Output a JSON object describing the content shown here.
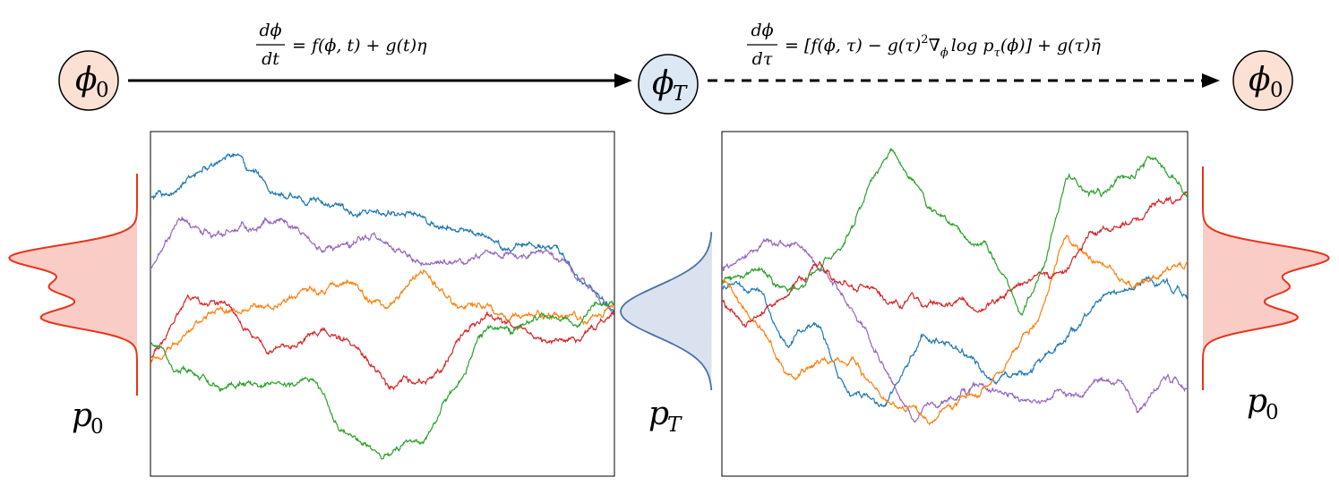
{
  "nodes": {
    "start": {
      "symbol": "ϕ",
      "sub": "0"
    },
    "middle": {
      "symbol": "ϕ",
      "sub": "T"
    },
    "end": {
      "symbol": "ϕ",
      "sub": "0"
    }
  },
  "forward_equation": {
    "numerator": "dϕ",
    "denominator": "dt",
    "rhs": "= f(ϕ, t) + g(t)η"
  },
  "reverse_equation": {
    "numerator": "dϕ",
    "denominator": "dτ",
    "rhs_a": "= [f(ϕ, τ)  − g(τ)",
    "rhs_b": "2",
    "rhs_c": "∇",
    "rhs_d": "ϕ",
    "rhs_e": "log p",
    "rhs_f": "τ",
    "rhs_g": "(ϕ)] + g(τ)η̄"
  },
  "distribution_labels": {
    "left": {
      "symbol": "p",
      "sub": "0"
    },
    "middle": {
      "symbol": "p",
      "sub": "T"
    },
    "right": {
      "symbol": "p",
      "sub": "0"
    }
  },
  "colors": {
    "node_data_fill": "#fbe0d4",
    "node_noise_fill": "#dde8f5",
    "data_dist_stroke": "#e8341c",
    "data_dist_fill": "#f9cdc5",
    "noise_dist_stroke": "#4a72a8",
    "noise_dist_fill": "#d9e2ee",
    "series": [
      "#1f77b4",
      "#9467bd",
      "#ff7f0e",
      "#d62728",
      "#2ca02c"
    ]
  },
  "series_names": [
    "blue",
    "purple",
    "orange",
    "red",
    "green"
  ]
}
